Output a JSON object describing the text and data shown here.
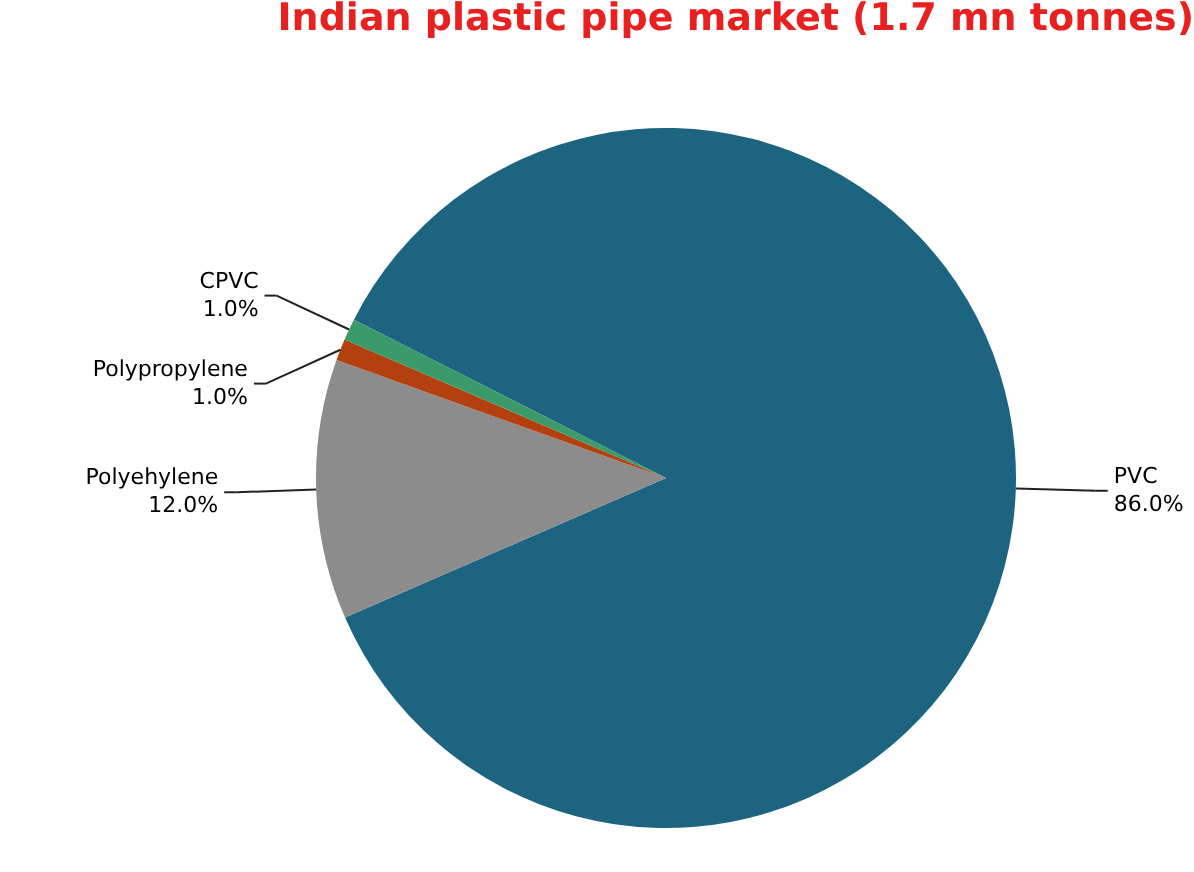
{
  "chart_data": {
    "type": "pie",
    "title": "Indian plastic pipe market (1.7 mn tonnes)",
    "categories": [
      "PVC",
      "Polyehylene",
      "Polypropylene",
      "CPVC"
    ],
    "values": [
      86.0,
      12.0,
      1.0,
      1.0
    ],
    "colors": [
      "#1c6480",
      "#8c8c8c",
      "#b5400f",
      "#3a9a6a"
    ],
    "value_labels": [
      "86.0%",
      "12.0%",
      "1.0%",
      "1.0%"
    ],
    "legend": false
  }
}
